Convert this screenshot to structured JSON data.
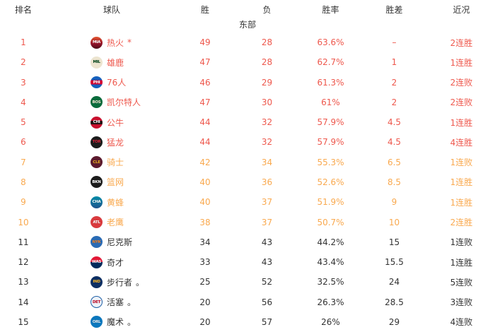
{
  "table": {
    "headers": [
      "排名",
      "球队",
      "胜",
      "负",
      "胜率",
      "胜差",
      "近况"
    ],
    "section_label": "东部",
    "colors": {
      "header_text": "#333333",
      "playoff_seed_red": "#ee584d",
      "playin_seed_orange": "#f9a94f",
      "normal_text": "#333333",
      "background": "#ffffff"
    },
    "rows": [
      {
        "rank": "1",
        "team": "热火",
        "marker": "*",
        "wins": "49",
        "losses": "28",
        "pct": "63.6%",
        "gb": "–",
        "streak": "2连胜",
        "tier": "red",
        "logo": {
          "abbr": "MIA",
          "bg": "linear-gradient(180deg,#e4572e 0%,#98132b 55%,#4a0d18 100%)",
          "fg": "#ffffff"
        }
      },
      {
        "rank": "2",
        "team": "雄鹿",
        "marker": "",
        "wins": "47",
        "losses": "28",
        "pct": "62.7%",
        "gb": "1",
        "streak": "1连胜",
        "tier": "red",
        "logo": {
          "abbr": "MIL",
          "bg": "#ece4cf",
          "fg": "#00471b"
        }
      },
      {
        "rank": "3",
        "team": "76人",
        "marker": "",
        "wins": "46",
        "losses": "29",
        "pct": "61.3%",
        "gb": "2",
        "streak": "2连败",
        "tier": "red",
        "logo": {
          "abbr": "PHI",
          "bg": "linear-gradient(180deg,#1560bd 32%,#d50032 32%,#d50032 68%,#1560bd 68%)",
          "fg": "#ffffff"
        }
      },
      {
        "rank": "4",
        "team": "凯尔特人",
        "marker": "",
        "wins": "47",
        "losses": "30",
        "pct": "61%",
        "gb": "2",
        "streak": "2连败",
        "tier": "red",
        "logo": {
          "abbr": "BOS",
          "bg": "#0a6b3c",
          "fg": "#f3ead3"
        }
      },
      {
        "rank": "5",
        "team": "公牛",
        "marker": "",
        "wins": "44",
        "losses": "32",
        "pct": "57.9%",
        "gb": "4.5",
        "streak": "1连胜",
        "tier": "red",
        "logo": {
          "abbr": "CHI",
          "bg": "linear-gradient(180deg,#c8102e 34%,#241214 34%,#241214 66%,#c8102e 66%)",
          "fg": "#ffffff"
        }
      },
      {
        "rank": "6",
        "team": "猛龙",
        "marker": "",
        "wins": "44",
        "losses": "32",
        "pct": "57.9%",
        "gb": "4.5",
        "streak": "4连胜",
        "tier": "red",
        "logo": {
          "abbr": "TOR",
          "bg": "#1c1c1c",
          "fg": "#d8243c"
        }
      },
      {
        "rank": "7",
        "team": "骑士",
        "marker": "",
        "wins": "42",
        "losses": "34",
        "pct": "55.3%",
        "gb": "6.5",
        "streak": "1连败",
        "tier": "orange",
        "logo": {
          "abbr": "CLE",
          "bg": "#5c1a2e",
          "fg": "#f0b323"
        }
      },
      {
        "rank": "8",
        "team": "篮网",
        "marker": "",
        "wins": "40",
        "losses": "36",
        "pct": "52.6%",
        "gb": "8.5",
        "streak": "1连胜",
        "tier": "orange",
        "logo": {
          "abbr": "BKN",
          "bg": "#1c1c1c",
          "fg": "#ffffff"
        }
      },
      {
        "rank": "9",
        "team": "黄蜂",
        "marker": "",
        "wins": "40",
        "losses": "37",
        "pct": "51.9%",
        "gb": "9",
        "streak": "1连胜",
        "tier": "orange",
        "logo": {
          "abbr": "CHA",
          "bg": "linear-gradient(180deg,#008ca8 0%,#20538c 100%)",
          "fg": "#ffffff"
        }
      },
      {
        "rank": "10",
        "team": "老鹰",
        "marker": "",
        "wins": "38",
        "losses": "37",
        "pct": "50.7%",
        "gb": "10",
        "streak": "2连胜",
        "tier": "orange",
        "logo": {
          "abbr": "ATL",
          "bg": "#d93a3e",
          "fg": "#ffffff"
        }
      },
      {
        "rank": "11",
        "team": "尼克斯",
        "marker": "",
        "wins": "34",
        "losses": "43",
        "pct": "44.2%",
        "gb": "15",
        "streak": "1连败",
        "tier": "normal",
        "logo": {
          "abbr": "NYK",
          "bg": "#2a6bb5",
          "fg": "#f58426"
        }
      },
      {
        "rank": "12",
        "team": "奇才",
        "marker": "",
        "wins": "33",
        "losses": "43",
        "pct": "43.4%",
        "gb": "15.5",
        "streak": "1连胜",
        "tier": "normal",
        "logo": {
          "abbr": "WAS",
          "bg": "linear-gradient(180deg,#e31837 46%,#002b5c 46%)",
          "fg": "#ffffff"
        }
      },
      {
        "rank": "13",
        "team": "步行者",
        "marker": "。",
        "wins": "25",
        "losses": "52",
        "pct": "32.5%",
        "gb": "24",
        "streak": "5连败",
        "tier": "normal",
        "logo": {
          "abbr": "IND",
          "bg": "#0d2f63",
          "fg": "#fdbb30"
        }
      },
      {
        "rank": "14",
        "team": "活塞",
        "marker": "。",
        "wins": "20",
        "losses": "56",
        "pct": "26.3%",
        "gb": "28.5",
        "streak": "3连败",
        "tier": "normal",
        "logo": {
          "abbr": "DET",
          "bg": "#eef2f8",
          "fg": "#c8102e",
          "border": "1.5px solid #1d5fa6"
        }
      },
      {
        "rank": "15",
        "team": "魔术",
        "marker": "。",
        "wins": "20",
        "losses": "57",
        "pct": "26%",
        "gb": "29",
        "streak": "4连败",
        "tier": "normal",
        "logo": {
          "abbr": "ORL",
          "bg": "#0b77bd",
          "fg": "#e9edf2"
        }
      }
    ]
  }
}
